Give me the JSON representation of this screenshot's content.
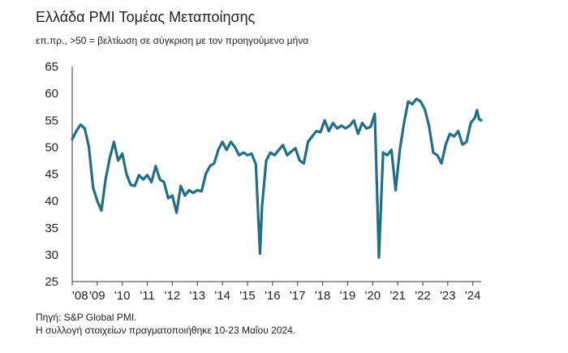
{
  "title": "Ελλάδα PMI Τομέας Μεταποίησης",
  "subtitle": "επ.πρ., >50 = βελτίωση σε σύγκριση με τον προηγούμενο μήνα",
  "source_line1": "Πηγή: S&P Global PMI.",
  "source_line2": "Η συλλογή στοιχείων πραγματοποιήθηκε 10-23 Μαΐου 2024.",
  "colors": {
    "line": "#1f6f86",
    "axis": "#333333"
  },
  "chart_data": {
    "type": "line",
    "title": "Ελλάδα PMI Τομέας Μεταποίησης",
    "subtitle": "επ.πρ., >50 = βελτίωση σε σύγκριση με τον προηγούμενο μήνα",
    "ylim": [
      25,
      65
    ],
    "y_ticks": [
      25,
      30,
      35,
      40,
      45,
      50,
      55,
      60,
      65
    ],
    "x_tick_labels": [
      "'08",
      "'09",
      "'10",
      "'11",
      "'12",
      "'13",
      "'14",
      "'15",
      "'16",
      "'17",
      "'18",
      "'19",
      "'20",
      "'21",
      "'22",
      "'23",
      "'24"
    ],
    "x_range": [
      "2008-01",
      "2024-05"
    ],
    "grid": false,
    "series": [
      {
        "points": [
          [
            "2008-01",
            51.5
          ],
          [
            "2008-03",
            53.0
          ],
          [
            "2008-05",
            54.2
          ],
          [
            "2008-07",
            53.5
          ],
          [
            "2008-09",
            50.0
          ],
          [
            "2008-11",
            42.5
          ],
          [
            "2009-01",
            40.0
          ],
          [
            "2009-03",
            38.2
          ],
          [
            "2009-05",
            44.0
          ],
          [
            "2009-07",
            48.0
          ],
          [
            "2009-09",
            51.0
          ],
          [
            "2009-11",
            47.5
          ],
          [
            "2010-01",
            48.8
          ],
          [
            "2010-03",
            45.0
          ],
          [
            "2010-05",
            43.0
          ],
          [
            "2010-07",
            42.8
          ],
          [
            "2010-09",
            44.8
          ],
          [
            "2010-11",
            44.0
          ],
          [
            "2011-01",
            44.8
          ],
          [
            "2011-03",
            43.5
          ],
          [
            "2011-05",
            46.5
          ],
          [
            "2011-07",
            44.0
          ],
          [
            "2011-09",
            43.5
          ],
          [
            "2011-11",
            40.5
          ],
          [
            "2012-01",
            41.0
          ],
          [
            "2012-03",
            37.8
          ],
          [
            "2012-05",
            42.8
          ],
          [
            "2012-07",
            41.0
          ],
          [
            "2012-09",
            42.0
          ],
          [
            "2012-11",
            41.5
          ],
          [
            "2013-01",
            42.0
          ],
          [
            "2013-03",
            41.8
          ],
          [
            "2013-05",
            45.0
          ],
          [
            "2013-07",
            46.5
          ],
          [
            "2013-09",
            47.0
          ],
          [
            "2013-11",
            49.5
          ],
          [
            "2014-01",
            51.0
          ],
          [
            "2014-03",
            49.5
          ],
          [
            "2014-05",
            51.0
          ],
          [
            "2014-07",
            50.0
          ],
          [
            "2014-09",
            48.5
          ],
          [
            "2014-11",
            49.0
          ],
          [
            "2015-01",
            48.5
          ],
          [
            "2015-03",
            48.8
          ],
          [
            "2015-05",
            46.8
          ],
          [
            "2015-07",
            30.2
          ],
          [
            "2015-08",
            39.1
          ],
          [
            "2015-10",
            47.5
          ],
          [
            "2015-12",
            49.0
          ],
          [
            "2016-02",
            48.5
          ],
          [
            "2016-04",
            49.5
          ],
          [
            "2016-06",
            50.4
          ],
          [
            "2016-08",
            48.5
          ],
          [
            "2016-10",
            49.2
          ],
          [
            "2016-12",
            49.8
          ],
          [
            "2017-02",
            47.5
          ],
          [
            "2017-04",
            47.0
          ],
          [
            "2017-06",
            51.0
          ],
          [
            "2017-08",
            52.0
          ],
          [
            "2017-10",
            53.0
          ],
          [
            "2017-12",
            52.8
          ],
          [
            "2018-02",
            55.0
          ],
          [
            "2018-04",
            53.0
          ],
          [
            "2018-06",
            54.5
          ],
          [
            "2018-08",
            53.5
          ],
          [
            "2018-10",
            54.0
          ],
          [
            "2018-12",
            53.5
          ],
          [
            "2019-02",
            54.0
          ],
          [
            "2019-04",
            55.0
          ],
          [
            "2019-06",
            52.5
          ],
          [
            "2019-08",
            54.5
          ],
          [
            "2019-10",
            53.5
          ],
          [
            "2019-12",
            53.8
          ],
          [
            "2020-02",
            56.2
          ],
          [
            "2020-04",
            29.5
          ],
          [
            "2020-06",
            49.0
          ],
          [
            "2020-08",
            48.5
          ],
          [
            "2020-10",
            49.5
          ],
          [
            "2020-12",
            42.0
          ],
          [
            "2021-02",
            49.5
          ],
          [
            "2021-04",
            54.5
          ],
          [
            "2021-06",
            58.5
          ],
          [
            "2021-08",
            58.0
          ],
          [
            "2021-10",
            59.0
          ],
          [
            "2021-12",
            58.5
          ],
          [
            "2022-02",
            57.0
          ],
          [
            "2022-04",
            54.0
          ],
          [
            "2022-06",
            49.0
          ],
          [
            "2022-08",
            48.5
          ],
          [
            "2022-10",
            47.0
          ],
          [
            "2022-12",
            50.5
          ],
          [
            "2023-02",
            52.5
          ],
          [
            "2023-04",
            52.0
          ],
          [
            "2023-06",
            53.0
          ],
          [
            "2023-08",
            50.5
          ],
          [
            "2023-10",
            51.0
          ],
          [
            "2023-12",
            54.5
          ],
          [
            "2024-02",
            55.5
          ],
          [
            "2024-03",
            56.9
          ],
          [
            "2024-04",
            55.2
          ],
          [
            "2024-05",
            55.0
          ]
        ]
      }
    ]
  }
}
